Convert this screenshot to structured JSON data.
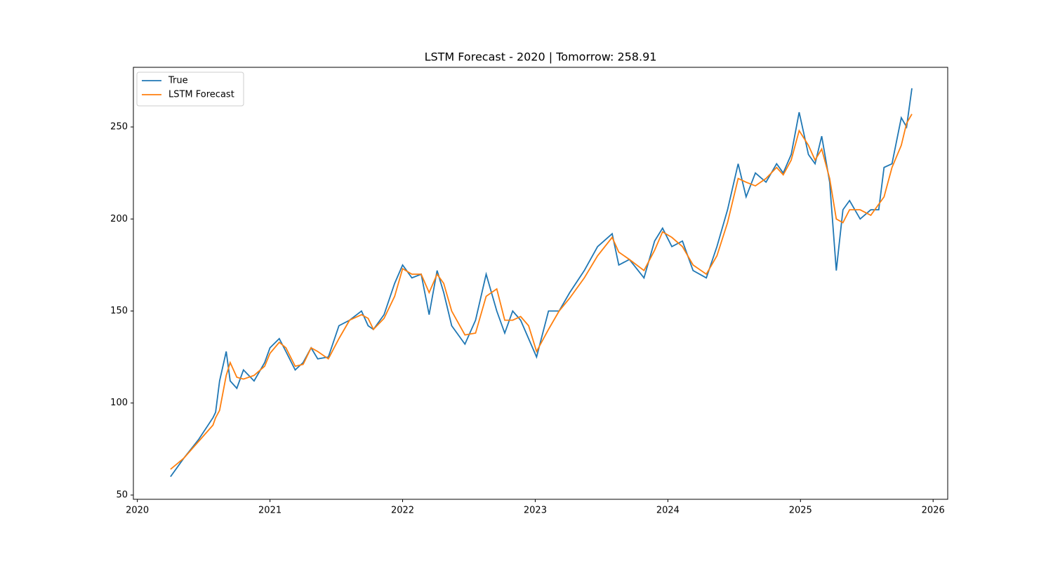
{
  "chart_data": {
    "type": "line",
    "title": "LSTM Forecast - 2020 | Tomorrow: 258.91",
    "x": [
      2020.25,
      2020.35,
      2020.46,
      2020.57,
      2020.59,
      2020.62,
      2020.67,
      2020.7,
      2020.75,
      2020.8,
      2020.88,
      2020.96,
      2021.0,
      2021.07,
      2021.12,
      2021.19,
      2021.25,
      2021.31,
      2021.36,
      2021.44,
      2021.52,
      2021.6,
      2021.69,
      2021.74,
      2021.78,
      2021.86,
      2021.94,
      2022.0,
      2022.07,
      2022.14,
      2022.2,
      2022.26,
      2022.31,
      2022.37,
      2022.47,
      2022.55,
      2022.63,
      2022.71,
      2022.77,
      2022.83,
      2022.89,
      2022.95,
      2023.01,
      2023.1,
      2023.18,
      2023.26,
      2023.37,
      2023.47,
      2023.58,
      2023.63,
      2023.71,
      2023.82,
      2023.9,
      2023.96,
      2024.03,
      2024.11,
      2024.19,
      2024.29,
      2024.37,
      2024.45,
      2024.53,
      2024.59,
      2024.66,
      2024.74,
      2024.82,
      2024.87,
      2024.93,
      2024.99,
      2025.06,
      2025.11,
      2025.16,
      2025.22,
      2025.27,
      2025.32,
      2025.37,
      2025.45,
      2025.53,
      2025.59,
      2025.63,
      2025.69,
      2025.76,
      2025.8,
      2025.84
    ],
    "series": [
      {
        "name": "True",
        "color": "#1f77b4",
        "values": [
          60,
          70,
          80,
          92,
          95,
          112,
          128,
          112,
          108,
          118,
          112,
          122,
          130,
          135,
          128,
          118,
          122,
          130,
          124,
          125,
          142,
          145,
          150,
          142,
          140,
          148,
          165,
          175,
          168,
          170,
          148,
          172,
          160,
          142,
          132,
          145,
          170,
          150,
          138,
          150,
          145,
          135,
          125,
          150,
          150,
          160,
          172,
          185,
          192,
          175,
          178,
          168,
          188,
          195,
          185,
          188,
          172,
          168,
          185,
          205,
          230,
          212,
          225,
          220,
          230,
          225,
          235,
          258,
          235,
          230,
          245,
          220,
          172,
          205,
          210,
          200,
          205,
          205,
          228,
          230,
          255,
          250,
          271
        ]
      },
      {
        "name": "LSTM Forecast",
        "color": "#ff7f0e",
        "values": [
          64,
          70,
          79,
          88,
          92,
          96,
          115,
          122,
          114,
          113,
          115,
          120,
          127,
          133,
          130,
          120,
          121,
          130,
          128,
          124,
          135,
          145,
          148,
          146,
          140,
          146,
          158,
          173,
          170,
          170,
          160,
          170,
          165,
          150,
          137,
          138,
          158,
          162,
          145,
          145,
          147,
          142,
          128,
          140,
          150,
          157,
          168,
          180,
          190,
          182,
          178,
          172,
          183,
          193,
          190,
          185,
          175,
          170,
          180,
          198,
          222,
          220,
          218,
          222,
          228,
          224,
          232,
          248,
          240,
          232,
          238,
          222,
          200,
          198,
          205,
          205,
          202,
          208,
          212,
          228,
          240,
          252,
          257
        ]
      }
    ],
    "xlim": [
      2019.97,
      2026.11
    ],
    "xticks": [
      2020,
      2021,
      2022,
      2023,
      2024,
      2025,
      2026
    ],
    "ylim": [
      47.7,
      282.4
    ],
    "yticks": [
      50,
      100,
      150,
      200,
      250
    ],
    "grid": false,
    "legend": "upper left"
  }
}
